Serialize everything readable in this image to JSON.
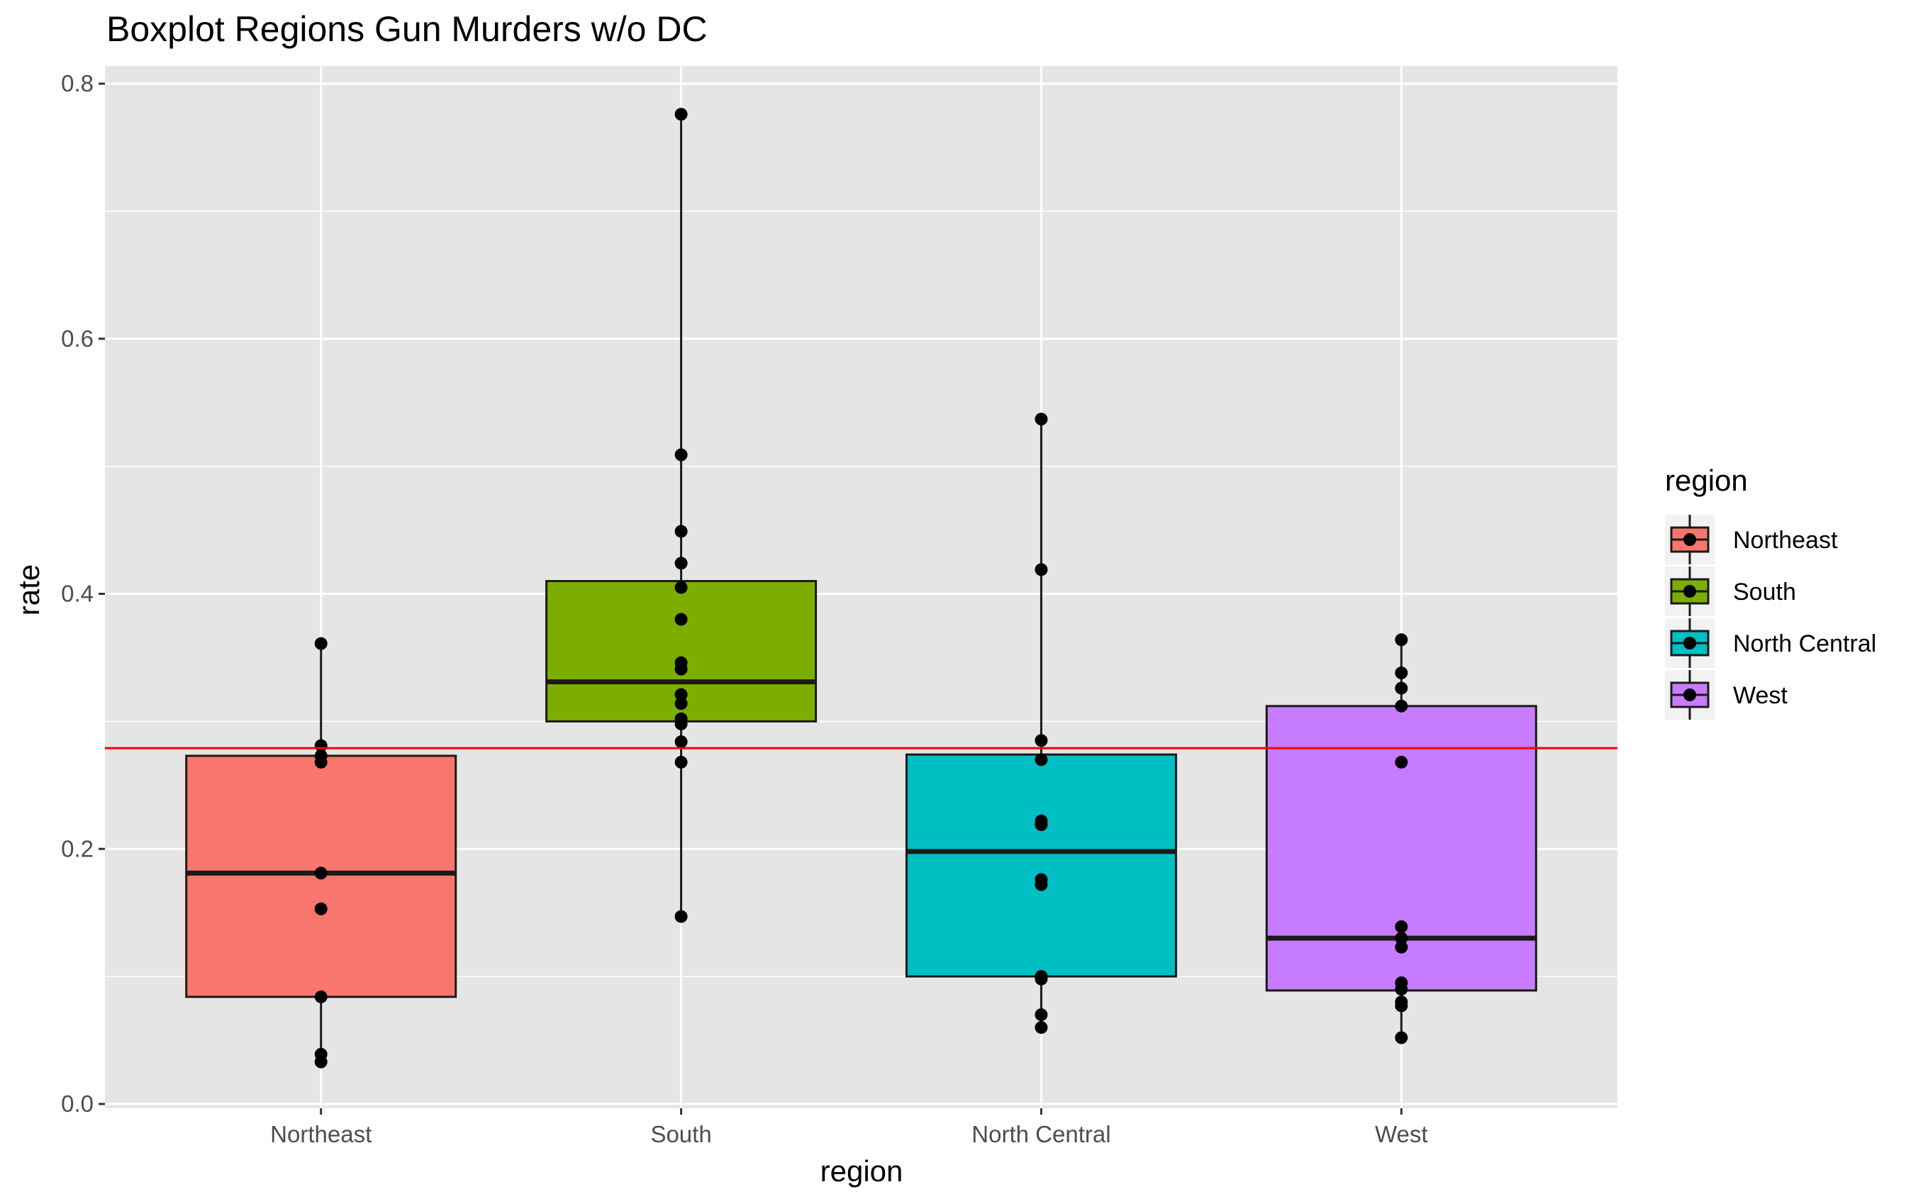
{
  "chart_data": {
    "type": "boxplot",
    "title": "Boxplot Regions Gun Murders w/o DC",
    "xlabel": "region",
    "ylabel": "rate",
    "ylim": [
      0,
      0.8
    ],
    "yticks": [
      0.0,
      0.2,
      0.4,
      0.6,
      0.8
    ],
    "ytick_labels": [
      "0.0",
      "0.2",
      "0.4",
      "0.6",
      "0.8"
    ],
    "categories": [
      "Northeast",
      "South",
      "North Central",
      "West"
    ],
    "reference_line": {
      "y": 0.279,
      "color": "#ff0000"
    },
    "grid": true,
    "background": "#e5e5e5",
    "legend": {
      "title": "region",
      "position": "right"
    },
    "boxes": [
      {
        "name": "Northeast",
        "color": "#f8766d",
        "q1": 0.084,
        "median": 0.181,
        "q3": 0.273,
        "whisker_low": 0.033,
        "whisker_high": 0.361,
        "points": [
          0.361,
          0.281,
          0.273,
          0.268,
          0.181,
          0.153,
          0.084,
          0.039,
          0.033
        ]
      },
      {
        "name": "South",
        "color": "#7cae00",
        "q1": 0.3,
        "median": 0.331,
        "q3": 0.41,
        "whisker_low": 0.147,
        "whisker_high": 0.776,
        "points": [
          0.776,
          0.509,
          0.449,
          0.424,
          0.405,
          0.38,
          0.346,
          0.341,
          0.321,
          0.314,
          0.302,
          0.298,
          0.284,
          0.268,
          0.147
        ]
      },
      {
        "name": "North Central",
        "color": "#00bfc4",
        "q1": 0.1,
        "median": 0.198,
        "q3": 0.274,
        "whisker_low": 0.06,
        "whisker_high": 0.537,
        "points": [
          0.537,
          0.419,
          0.285,
          0.27,
          0.222,
          0.219,
          0.176,
          0.172,
          0.1,
          0.098,
          0.07,
          0.06
        ]
      },
      {
        "name": "West",
        "color": "#c77cff",
        "q1": 0.089,
        "median": 0.13,
        "q3": 0.312,
        "whisker_low": 0.052,
        "whisker_high": 0.364,
        "points": [
          0.364,
          0.338,
          0.326,
          0.312,
          0.268,
          0.139,
          0.13,
          0.123,
          0.095,
          0.09,
          0.08,
          0.077,
          0.052
        ]
      }
    ]
  }
}
